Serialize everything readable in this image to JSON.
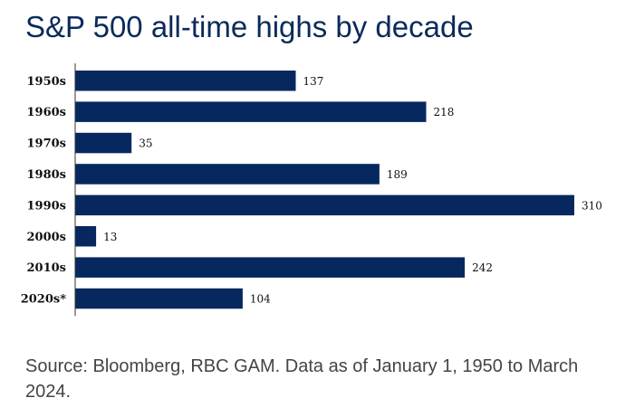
{
  "colors": {
    "bar": "#06285f",
    "axis": "#333333",
    "title": "#0b2a5b",
    "text": "#111111",
    "source": "#444444"
  },
  "chart_data": {
    "type": "bar",
    "orientation": "horizontal",
    "title": "S&P 500 all-time highs by decade",
    "categories": [
      "1950s",
      "1960s",
      "1970s",
      "1980s",
      "1990s",
      "2000s",
      "2010s",
      "2020s*"
    ],
    "values": [
      137,
      218,
      35,
      189,
      310,
      13,
      242,
      104
    ],
    "xlabel": "",
    "ylabel": "",
    "xlim": [
      0,
      310
    ],
    "grid": false,
    "legend": "none",
    "data_labels": true
  },
  "source": {
    "text": "Source: Bloomberg, RBC GAM. Data as of January 1, 1950 to March 2024."
  }
}
